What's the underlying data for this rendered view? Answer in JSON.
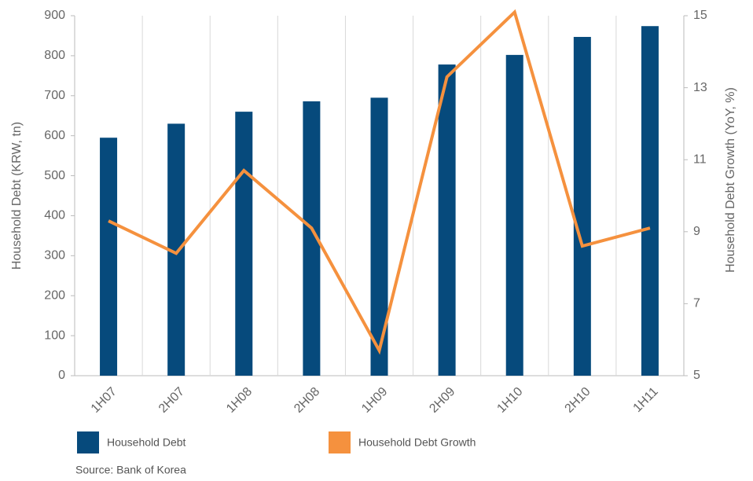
{
  "chart_data": {
    "type": "bar_line",
    "categories": [
      "1H07",
      "2H07",
      "1H08",
      "2H08",
      "1H09",
      "2H09",
      "1H10",
      "2H10",
      "1H11"
    ],
    "series": [
      {
        "name": "Household Debt",
        "color": "#064a7c",
        "type": "bar",
        "values": [
          595,
          630,
          660,
          686,
          695,
          778,
          802,
          847,
          874
        ]
      },
      {
        "name": "Household Debt Growth",
        "color": "#f5913e",
        "type": "line",
        "axis": "y2",
        "values": [
          9.3,
          8.4,
          10.7,
          9.1,
          5.7,
          13.3,
          15.1,
          8.6,
          9.1
        ]
      }
    ],
    "y_label": "Household Debt (KRW, tn)",
    "y2_label": "Household Debt Growth (YoY, %)",
    "ylim": [
      0,
      900
    ],
    "yticks": [
      0,
      100,
      200,
      300,
      400,
      500,
      600,
      700,
      800,
      900
    ],
    "y2lim": [
      5,
      15
    ],
    "y2ticks": [
      5,
      7,
      9,
      11,
      13,
      15
    ],
    "source": "Source: Bank of Korea"
  }
}
